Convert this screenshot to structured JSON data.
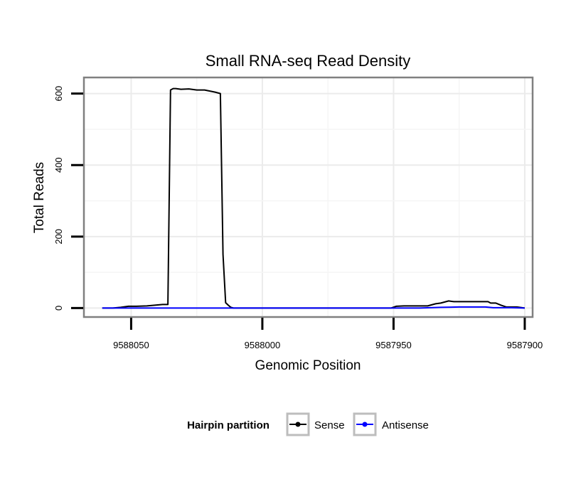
{
  "chart_data": {
    "type": "line",
    "title": "Small RNA-seq Read Density",
    "xlabel": "Genomic Position",
    "ylabel": "Total Reads",
    "xlim": [
      9588068,
      9587897
    ],
    "ylim": [
      -25,
      645
    ],
    "x_reversed": true,
    "grid": true,
    "x_ticks": [
      9588050,
      9588000,
      9587950,
      9587900
    ],
    "x_tick_labels": [
      "9588050",
      "9588000",
      "9587950",
      "9587900"
    ],
    "y_ticks": [
      0,
      200,
      400,
      600
    ],
    "y_tick_labels": [
      "0",
      "200",
      "400",
      "600"
    ],
    "legend": {
      "title": "Hairpin partition",
      "position": "bottom"
    },
    "series": [
      {
        "name": "Sense",
        "color": "#000000",
        "x": [
          9588061,
          9588057,
          9588054,
          9588051,
          9588048,
          9588044,
          9588041,
          9588038,
          9588036,
          9588035,
          9588034,
          9588033,
          9588031,
          9588028,
          9588025,
          9588022,
          9588018,
          9588016,
          9588015,
          9588014,
          9588013,
          9588012,
          9588011,
          9588000,
          9587990,
          9587980,
          9587970,
          9587960,
          9587951,
          9587949,
          9587946,
          9587940,
          9587937,
          9587934,
          9587932,
          9587929,
          9587927,
          9587924,
          9587920,
          9587914,
          9587913,
          9587911,
          9587909,
          9587907,
          9587905,
          9587903,
          9587900
        ],
        "y": [
          0,
          0,
          2,
          5,
          5,
          6,
          8,
          10,
          10,
          610,
          614,
          614,
          612,
          613,
          610,
          610,
          604,
          600,
          150,
          15,
          8,
          2,
          0,
          0,
          0,
          0,
          0,
          0,
          0,
          5,
          6,
          6,
          6,
          12,
          14,
          20,
          18,
          18,
          18,
          18,
          14,
          14,
          8,
          3,
          3,
          3,
          0
        ]
      },
      {
        "name": "Antisense",
        "color": "#0000ff",
        "x": [
          9588061,
          9588050,
          9588040,
          9588030,
          9588020,
          9588010,
          9588000,
          9587990,
          9587980,
          9587970,
          9587960,
          9587950,
          9587946,
          9587940,
          9587932,
          9587925,
          9587915,
          9587912,
          9587905,
          9587900
        ],
        "y": [
          0,
          0,
          0,
          0,
          0,
          0,
          0,
          0,
          0,
          0,
          0,
          0,
          0,
          0,
          2,
          3,
          3,
          1,
          1,
          0
        ]
      }
    ]
  }
}
